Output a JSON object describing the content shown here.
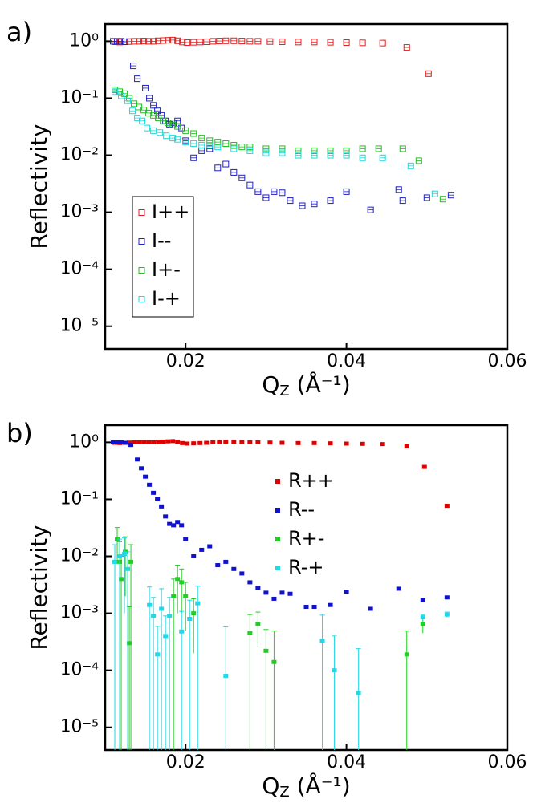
{
  "chart_data": [
    {
      "type": "scatter",
      "panel_label": "a)",
      "y_label": "Reflectivity",
      "x_label": {
        "text": "Q",
        "sub": "Z",
        "unit": " (Å⁻¹)"
      },
      "log_y": true,
      "marker": "open",
      "legend": "lower left",
      "legend_box": true,
      "xlim": [
        0.01,
        0.06
      ],
      "xticks": [
        0.02,
        0.04,
        0.06
      ],
      "ylim": [
        4e-06,
        2
      ],
      "yticks": [
        {
          "value": 1,
          "label": "10⁰"
        },
        {
          "value": 0.1,
          "label": "10⁻¹"
        },
        {
          "value": 0.01,
          "label": "10⁻²"
        },
        {
          "value": 0.001,
          "label": "10⁻³"
        },
        {
          "value": 0.0001,
          "label": "10⁻⁴"
        },
        {
          "value": 1e-05,
          "label": "10⁻⁵"
        }
      ],
      "series": [
        {
          "name": "I++",
          "color": "#e02020",
          "x": [
            0.0112,
            0.0118,
            0.0124,
            0.013,
            0.0136,
            0.0142,
            0.0148,
            0.0154,
            0.016,
            0.0166,
            0.0172,
            0.0178,
            0.0184,
            0.019,
            0.0196,
            0.0202,
            0.021,
            0.0218,
            0.0226,
            0.0234,
            0.0242,
            0.025,
            0.026,
            0.027,
            0.028,
            0.029,
            0.0305,
            0.032,
            0.034,
            0.036,
            0.038,
            0.04,
            0.042,
            0.0445,
            0.0475,
            0.0502
          ],
          "values": [
            0.98,
            0.97,
            0.98,
            0.99,
            1.0,
            1.0,
            1.01,
            1.0,
            1.0,
            1.02,
            1.03,
            1.04,
            1.05,
            1.02,
            0.97,
            0.95,
            0.96,
            0.97,
            0.98,
            1.0,
            1.01,
            1.02,
            1.02,
            1.01,
            1.0,
            1.0,
            0.99,
            0.98,
            0.97,
            0.97,
            0.96,
            0.95,
            0.94,
            0.93,
            0.78,
            0.27
          ]
        },
        {
          "name": "I--",
          "color": "#2020c0",
          "x": [
            0.011,
            0.0115,
            0.012,
            0.0125,
            0.0135,
            0.014,
            0.015,
            0.0155,
            0.016,
            0.0165,
            0.017,
            0.0175,
            0.018,
            0.0185,
            0.019,
            0.0195,
            0.02,
            0.021,
            0.022,
            0.023,
            0.024,
            0.025,
            0.026,
            0.027,
            0.028,
            0.029,
            0.03,
            0.031,
            0.032,
            0.033,
            0.0345,
            0.036,
            0.038,
            0.04,
            0.043,
            0.0465,
            0.047,
            0.05,
            0.053
          ],
          "values": [
            1.0,
            1.0,
            1.0,
            0.98,
            0.37,
            0.22,
            0.15,
            0.1,
            0.075,
            0.06,
            0.05,
            0.04,
            0.035,
            0.037,
            0.04,
            0.03,
            0.018,
            0.009,
            0.012,
            0.013,
            0.006,
            0.007,
            0.005,
            0.004,
            0.003,
            0.0023,
            0.0018,
            0.0023,
            0.0022,
            0.0016,
            0.0013,
            0.0014,
            0.0016,
            0.0023,
            0.0011,
            0.0025,
            0.0016,
            0.0018,
            0.002
          ]
        },
        {
          "name": "I+-",
          "color": "#20c020",
          "x": [
            0.0112,
            0.0118,
            0.0124,
            0.013,
            0.0136,
            0.0142,
            0.0148,
            0.0154,
            0.016,
            0.0166,
            0.0172,
            0.0178,
            0.0184,
            0.019,
            0.02,
            0.021,
            0.022,
            0.023,
            0.024,
            0.025,
            0.026,
            0.027,
            0.028,
            0.03,
            0.032,
            0.034,
            0.036,
            0.038,
            0.04,
            0.042,
            0.044,
            0.047,
            0.049,
            0.052
          ],
          "values": [
            0.14,
            0.13,
            0.12,
            0.1,
            0.08,
            0.07,
            0.062,
            0.055,
            0.05,
            0.045,
            0.04,
            0.037,
            0.034,
            0.032,
            0.027,
            0.024,
            0.02,
            0.018,
            0.017,
            0.016,
            0.015,
            0.014,
            0.014,
            0.013,
            0.013,
            0.012,
            0.012,
            0.012,
            0.012,
            0.013,
            0.013,
            0.013,
            0.008,
            0.0017
          ]
        },
        {
          "name": "I-+",
          "color": "#20d8d8",
          "x": [
            0.0112,
            0.012,
            0.0128,
            0.0134,
            0.014,
            0.0146,
            0.0152,
            0.016,
            0.0168,
            0.0176,
            0.0184,
            0.019,
            0.02,
            0.021,
            0.022,
            0.023,
            0.024,
            0.026,
            0.028,
            0.03,
            0.032,
            0.034,
            0.036,
            0.038,
            0.04,
            0.042,
            0.0445,
            0.048,
            0.051
          ],
          "values": [
            0.13,
            0.11,
            0.09,
            0.06,
            0.045,
            0.04,
            0.03,
            0.027,
            0.025,
            0.022,
            0.02,
            0.019,
            0.017,
            0.016,
            0.015,
            0.015,
            0.014,
            0.013,
            0.012,
            0.011,
            0.011,
            0.01,
            0.01,
            0.01,
            0.01,
            0.009,
            0.009,
            0.0065,
            0.0021
          ]
        }
      ]
    },
    {
      "type": "scatter",
      "panel_label": "b)",
      "y_label": "Reflectivity",
      "x_label": {
        "text": "Q",
        "sub": "Z",
        "unit": " (Å⁻¹)"
      },
      "log_y": true,
      "marker": "filled",
      "legend": "upper right",
      "legend_box": false,
      "xlim": [
        0.01,
        0.06
      ],
      "xticks": [
        0.02,
        0.04,
        0.06
      ],
      "ylim": [
        4e-06,
        2
      ],
      "yticks": [
        {
          "value": 1,
          "label": "10⁰"
        },
        {
          "value": 0.1,
          "label": "10⁻¹"
        },
        {
          "value": 0.01,
          "label": "10⁻²"
        },
        {
          "value": 0.001,
          "label": "10⁻³"
        },
        {
          "value": 0.0001,
          "label": "10⁻⁴"
        },
        {
          "value": 1e-05,
          "label": "10⁻⁵"
        }
      ],
      "series": [
        {
          "name": "R++",
          "color": "#e00000",
          "x": [
            0.0112,
            0.0118,
            0.0124,
            0.013,
            0.0136,
            0.0142,
            0.0148,
            0.0154,
            0.016,
            0.0166,
            0.0172,
            0.0178,
            0.0184,
            0.019,
            0.0196,
            0.0202,
            0.021,
            0.0218,
            0.0226,
            0.0234,
            0.0242,
            0.025,
            0.026,
            0.027,
            0.028,
            0.029,
            0.0305,
            0.032,
            0.034,
            0.036,
            0.038,
            0.04,
            0.042,
            0.0445,
            0.0475,
            0.0497,
            0.0525
          ],
          "values": [
            0.98,
            0.97,
            0.98,
            0.99,
            1.0,
            1.0,
            1.01,
            1.0,
            1.0,
            1.02,
            1.03,
            1.04,
            1.05,
            1.02,
            0.97,
            0.95,
            0.96,
            0.97,
            0.98,
            1.0,
            1.01,
            1.02,
            1.02,
            1.01,
            1.0,
            1.0,
            0.99,
            0.98,
            0.97,
            0.97,
            0.96,
            0.95,
            0.94,
            0.93,
            0.85,
            0.37,
            0.077
          ]
        },
        {
          "name": "R--",
          "color": "#1010d0",
          "x": [
            0.011,
            0.0115,
            0.012,
            0.0125,
            0.0132,
            0.014,
            0.0145,
            0.015,
            0.0155,
            0.016,
            0.0165,
            0.017,
            0.0175,
            0.018,
            0.0185,
            0.019,
            0.0195,
            0.02,
            0.021,
            0.022,
            0.023,
            0.024,
            0.025,
            0.026,
            0.027,
            0.028,
            0.029,
            0.03,
            0.031,
            0.032,
            0.033,
            0.035,
            0.036,
            0.038,
            0.04,
            0.043,
            0.0465,
            0.0495,
            0.0525
          ],
          "values": [
            1.0,
            1.0,
            1.0,
            0.98,
            0.9,
            0.5,
            0.35,
            0.25,
            0.18,
            0.13,
            0.1,
            0.075,
            0.05,
            0.037,
            0.035,
            0.04,
            0.035,
            0.02,
            0.01,
            0.013,
            0.015,
            0.007,
            0.008,
            0.006,
            0.005,
            0.0035,
            0.0028,
            0.0023,
            0.0018,
            0.0023,
            0.0022,
            0.0013,
            0.0013,
            0.0014,
            0.0024,
            0.0012,
            0.0027,
            0.0017,
            0.0019
          ]
        },
        {
          "name": "R+-",
          "color": "#20d020",
          "x": [
            0.0115,
            0.0118,
            0.012,
            0.0125,
            0.013,
            0.0132,
            0.0185,
            0.019,
            0.0195,
            0.02,
            0.021,
            0.028,
            0.029,
            0.03,
            0.031,
            0.0475,
            0.0495
          ],
          "values": [
            0.02,
            0.008,
            0.004,
            0.012,
            0.0003,
            0.008,
            0.002,
            0.004,
            0.0035,
            0.002,
            0.001,
            0.00045,
            0.00065,
            0.00022,
            0.00014,
            0.00019,
            0.00065
          ],
          "errors": [
            0.012,
            0.01,
            0.006,
            0.01,
            0.001,
            0.008,
            0.002,
            0.003,
            0.0025,
            0.0015,
            0.0008,
            0.0005,
            0.0004,
            0.0003,
            0.00035,
            0.0003,
            0.0002
          ]
        },
        {
          "name": "R-+",
          "color": "#20d8e8",
          "x": [
            0.0112,
            0.0118,
            0.0124,
            0.0128,
            0.0155,
            0.016,
            0.0165,
            0.017,
            0.0175,
            0.018,
            0.0195,
            0.0205,
            0.0215,
            0.025,
            0.037,
            0.0385,
            0.0415,
            0.0495,
            0.0525
          ],
          "values": [
            0.008,
            0.01,
            0.011,
            0.006,
            0.0014,
            0.0009,
            0.00019,
            0.0012,
            0.0004,
            0.0009,
            0.00048,
            0.0008,
            0.0015,
            8e-05,
            0.00033,
            0.0001,
            4e-05,
            0.00085,
            0.00095
          ],
          "errors": [
            0.008,
            0.01,
            0.01,
            0.006,
            0.0015,
            0.001,
            0.0004,
            0.0015,
            0.0005,
            0.001,
            0.0006,
            0.0009,
            0.0015,
            0.0005,
            0.0006,
            0.0003,
            0.0002,
            0.0001,
            0.0001
          ]
        }
      ]
    }
  ]
}
